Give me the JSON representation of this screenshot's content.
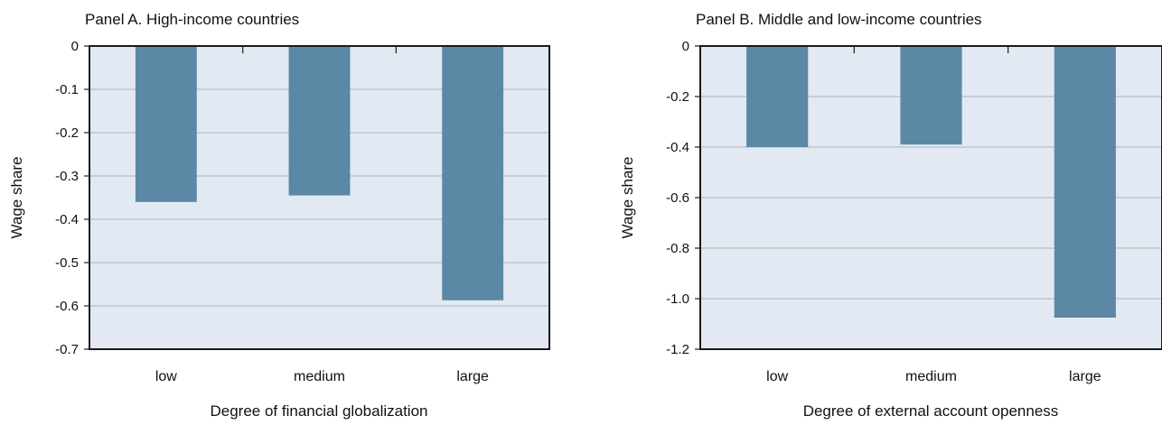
{
  "chart_data": [
    {
      "type": "bar",
      "title": "Panel A. High-income countries",
      "xlabel": "Degree of financial globalization",
      "ylabel": "Wage share",
      "categories": [
        "low",
        "medium",
        "large"
      ],
      "values": [
        -0.36,
        -0.345,
        -0.587
      ],
      "ylim": [
        -0.7,
        0
      ],
      "yticks": [
        0,
        -0.1,
        -0.2,
        -0.3,
        -0.4,
        -0.5,
        -0.6,
        -0.7
      ],
      "ytick_labels": [
        "0",
        "-0.1",
        "-0.2",
        "-0.3",
        "-0.4",
        "-0.5",
        "-0.6",
        "-0.7"
      ],
      "grid": true,
      "colors": {
        "bar": "#5b88a5",
        "plot_bg": "#e2e9f2",
        "grid": "#a9b3bf",
        "frame": "#1a1a1a"
      }
    },
    {
      "type": "bar",
      "title": "Panel B. Middle and low-income countries",
      "xlabel": "Degree of external account openness",
      "ylabel": "Wage share",
      "categories": [
        "low",
        "medium",
        "large"
      ],
      "values": [
        -0.4,
        -0.39,
        -1.075
      ],
      "ylim": [
        -1.2,
        0
      ],
      "yticks": [
        0,
        -0.2,
        -0.4,
        -0.6,
        -0.8,
        -1.0,
        -1.2
      ],
      "ytick_labels": [
        "0",
        "-0.2",
        "-0.4",
        "-0.6",
        "-0.8",
        "-1.0",
        "-1.2"
      ],
      "grid": true,
      "colors": {
        "bar": "#5b88a5",
        "plot_bg": "#e2e9f2",
        "grid": "#a9b3bf",
        "frame": "#1a1a1a"
      }
    }
  ]
}
